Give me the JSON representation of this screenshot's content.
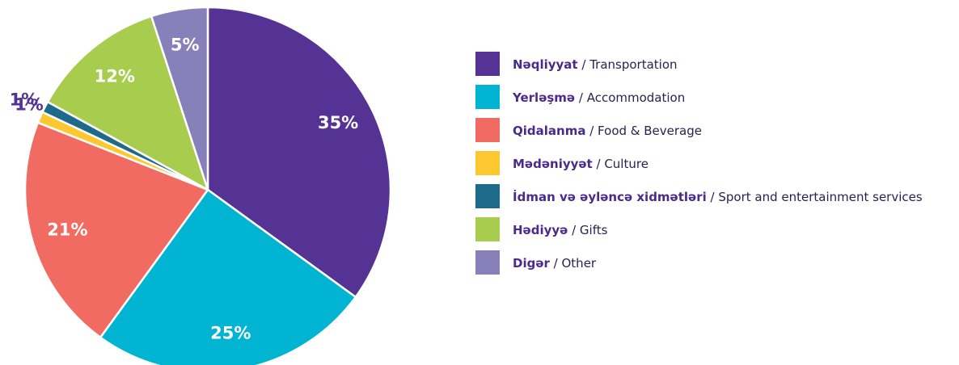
{
  "chart_data": {
    "type": "pie",
    "categories": [
      "Nəqliyyat / Transportation",
      "Yerləşmə / Accommodation",
      "Qidalanma / Food & Beverage",
      "Mədəniyyət / Culture",
      "İdman və əyləncə xidmətləri / Sport and entertainment services",
      "Hədiyyə / Gifts",
      "Digər / Other"
    ],
    "values": [
      35,
      25,
      21,
      1,
      1,
      12,
      5
    ],
    "value_labels": [
      "35%",
      "25%",
      "21%",
      "1%",
      "1%",
      "12%",
      "5%"
    ],
    "colors": [
      "#553394",
      "#00b4d2",
      "#f26b63",
      "#fdc82f",
      "#1e6a8a",
      "#a8cd4e",
      "#8780b9"
    ]
  }
}
